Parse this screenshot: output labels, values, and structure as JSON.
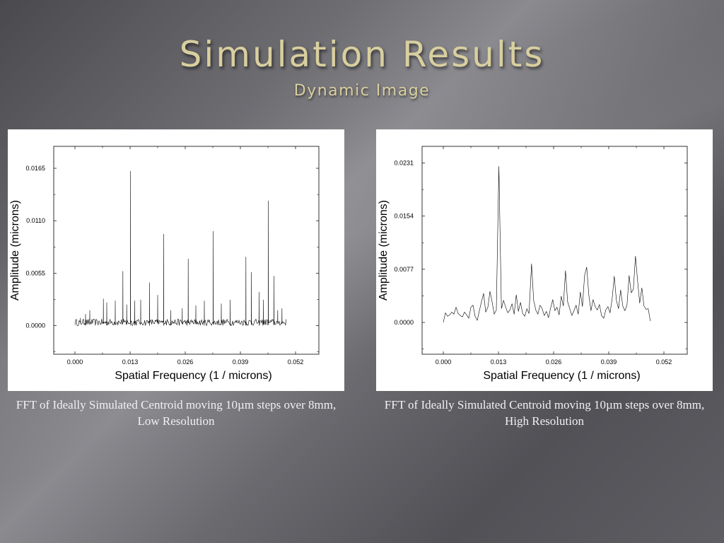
{
  "slide": {
    "title": "Simulation Results",
    "subtitle": "Dynamic Image"
  },
  "captions": {
    "left": "FFT of Ideally Simulated Centroid moving 10µm steps over 8mm, Low Resolution",
    "right": "FFT of Ideally Simulated Centroid moving 10µm steps over 8mm, High Resolution"
  },
  "chart_data": [
    {
      "type": "line",
      "xlabel": "Spatial Frequency (1 / microns)",
      "ylabel": "Amplitude (microns)",
      "xlim": [
        -0.005,
        0.0575
      ],
      "ylim": [
        -0.003,
        0.0188
      ],
      "xticks": [
        "0.000",
        "0.013",
        "0.026",
        "0.039",
        "0.052"
      ],
      "yticks": [
        "0.0000",
        "0.0055",
        "0.0110",
        "0.0165"
      ],
      "xtick_values": [
        0,
        0.013,
        0.026,
        0.039,
        0.052
      ],
      "ytick_values": [
        0,
        0.0055,
        0.011,
        0.0165
      ],
      "x_range": [
        0,
        0.0498
      ],
      "baseline_noise": 0.0007,
      "peaks": [
        {
          "x": 0.0013,
          "y": 0.0008
        },
        {
          "x": 0.0025,
          "y": 0.0012
        },
        {
          "x": 0.0035,
          "y": 0.0016
        },
        {
          "x": 0.0067,
          "y": 0.0028
        },
        {
          "x": 0.0075,
          "y": 0.0024
        },
        {
          "x": 0.0095,
          "y": 0.0026
        },
        {
          "x": 0.0113,
          "y": 0.0057
        },
        {
          "x": 0.0122,
          "y": 0.0022
        },
        {
          "x": 0.0131,
          "y": 0.0162
        },
        {
          "x": 0.0141,
          "y": 0.0026
        },
        {
          "x": 0.0155,
          "y": 0.0027
        },
        {
          "x": 0.0176,
          "y": 0.0045
        },
        {
          "x": 0.0195,
          "y": 0.0032
        },
        {
          "x": 0.0209,
          "y": 0.0096
        },
        {
          "x": 0.0226,
          "y": 0.0016
        },
        {
          "x": 0.0253,
          "y": 0.0018
        },
        {
          "x": 0.0267,
          "y": 0.007
        },
        {
          "x": 0.0285,
          "y": 0.0021
        },
        {
          "x": 0.0305,
          "y": 0.0026
        },
        {
          "x": 0.0326,
          "y": 0.0099
        },
        {
          "x": 0.0345,
          "y": 0.0023
        },
        {
          "x": 0.0366,
          "y": 0.0027
        },
        {
          "x": 0.0403,
          "y": 0.0072
        },
        {
          "x": 0.0416,
          "y": 0.0056
        },
        {
          "x": 0.0434,
          "y": 0.0035
        },
        {
          "x": 0.0444,
          "y": 0.0027
        },
        {
          "x": 0.0456,
          "y": 0.0131
        },
        {
          "x": 0.0469,
          "y": 0.0052
        },
        {
          "x": 0.0478,
          "y": 0.0016
        },
        {
          "x": 0.0488,
          "y": 0.0018
        }
      ]
    },
    {
      "type": "line",
      "xlabel": "Spatial Frequency (1 / microns)",
      "ylabel": "Amplitude (microns)",
      "xlim": [
        -0.005,
        0.0575
      ],
      "ylim": [
        -0.0046,
        0.0255
      ],
      "xticks": [
        "0.000",
        "0.013",
        "0.026",
        "0.039",
        "0.052"
      ],
      "yticks": [
        "0.0000",
        "0.0077",
        "0.0154",
        "0.0231"
      ],
      "xtick_values": [
        0,
        0.013,
        0.026,
        0.039,
        0.052
      ],
      "ytick_values": [
        0,
        0.0077,
        0.0154,
        0.0231
      ],
      "points": [
        [
          0.0,
          0.0
        ],
        [
          0.0005,
          0.0014
        ],
        [
          0.001,
          0.0009
        ],
        [
          0.0015,
          0.0011
        ],
        [
          0.002,
          0.0015
        ],
        [
          0.0025,
          0.0012
        ],
        [
          0.003,
          0.0022
        ],
        [
          0.0035,
          0.0013
        ],
        [
          0.004,
          0.001
        ],
        [
          0.0045,
          0.0008
        ],
        [
          0.005,
          0.0015
        ],
        [
          0.0055,
          0.0011
        ],
        [
          0.006,
          0.0006
        ],
        [
          0.0065,
          0.0022
        ],
        [
          0.007,
          0.0025
        ],
        [
          0.0075,
          0.0009
        ],
        [
          0.008,
          0.0003
        ],
        [
          0.0085,
          0.0017
        ],
        [
          0.009,
          0.003
        ],
        [
          0.0095,
          0.0042
        ],
        [
          0.01,
          0.0015
        ],
        [
          0.0105,
          0.0022
        ],
        [
          0.011,
          0.0045
        ],
        [
          0.0115,
          0.003
        ],
        [
          0.012,
          0.0012
        ],
        [
          0.0125,
          0.0018
        ],
        [
          0.0131,
          0.0226
        ],
        [
          0.0137,
          0.002
        ],
        [
          0.0142,
          0.0032
        ],
        [
          0.0147,
          0.0022
        ],
        [
          0.0152,
          0.0014
        ],
        [
          0.0157,
          0.0018
        ],
        [
          0.0162,
          0.0027
        ],
        [
          0.0167,
          0.0012
        ],
        [
          0.0172,
          0.004
        ],
        [
          0.0177,
          0.0016
        ],
        [
          0.0182,
          0.0029
        ],
        [
          0.0187,
          0.0013
        ],
        [
          0.0192,
          0.0009
        ],
        [
          0.0197,
          0.002
        ],
        [
          0.0202,
          0.0013
        ],
        [
          0.0208,
          0.0085
        ],
        [
          0.0213,
          0.0032
        ],
        [
          0.0218,
          0.0018
        ],
        [
          0.0223,
          0.0012
        ],
        [
          0.0228,
          0.0025
        ],
        [
          0.0233,
          0.002
        ],
        [
          0.0238,
          0.001
        ],
        [
          0.0243,
          0.0016
        ],
        [
          0.0248,
          0.0007
        ],
        [
          0.0253,
          0.0021
        ],
        [
          0.0258,
          0.0033
        ],
        [
          0.0263,
          0.0017
        ],
        [
          0.0268,
          0.0022
        ],
        [
          0.0273,
          0.0011
        ],
        [
          0.0278,
          0.0038
        ],
        [
          0.0283,
          0.0024
        ],
        [
          0.0288,
          0.0075
        ],
        [
          0.0293,
          0.003
        ],
        [
          0.0298,
          0.002
        ],
        [
          0.0303,
          0.001
        ],
        [
          0.0308,
          0.0017
        ],
        [
          0.0313,
          0.0025
        ],
        [
          0.0318,
          0.0012
        ],
        [
          0.0323,
          0.0044
        ],
        [
          0.0328,
          0.0023
        ],
        [
          0.0333,
          0.0068
        ],
        [
          0.0338,
          0.008
        ],
        [
          0.0343,
          0.004
        ],
        [
          0.0348,
          0.0017
        ],
        [
          0.0353,
          0.0033
        ],
        [
          0.0358,
          0.0023
        ],
        [
          0.0363,
          0.0018
        ],
        [
          0.0368,
          0.0026
        ],
        [
          0.0373,
          0.001
        ],
        [
          0.0378,
          0.0006
        ],
        [
          0.0383,
          0.0018
        ],
        [
          0.0388,
          0.0023
        ],
        [
          0.0393,
          0.0014
        ],
        [
          0.0398,
          0.0034
        ],
        [
          0.0403,
          0.0067
        ],
        [
          0.0408,
          0.0032
        ],
        [
          0.0413,
          0.002
        ],
        [
          0.0418,
          0.0047
        ],
        [
          0.0423,
          0.0024
        ],
        [
          0.0428,
          0.0017
        ],
        [
          0.0433,
          0.0025
        ],
        [
          0.0438,
          0.0068
        ],
        [
          0.0443,
          0.0043
        ],
        [
          0.0448,
          0.0048
        ],
        [
          0.0453,
          0.0096
        ],
        [
          0.0458,
          0.006
        ],
        [
          0.0463,
          0.0028
        ],
        [
          0.0468,
          0.005
        ],
        [
          0.0473,
          0.0024
        ],
        [
          0.0478,
          0.0019
        ],
        [
          0.0483,
          0.002
        ],
        [
          0.0488,
          0.0002
        ]
      ]
    }
  ]
}
